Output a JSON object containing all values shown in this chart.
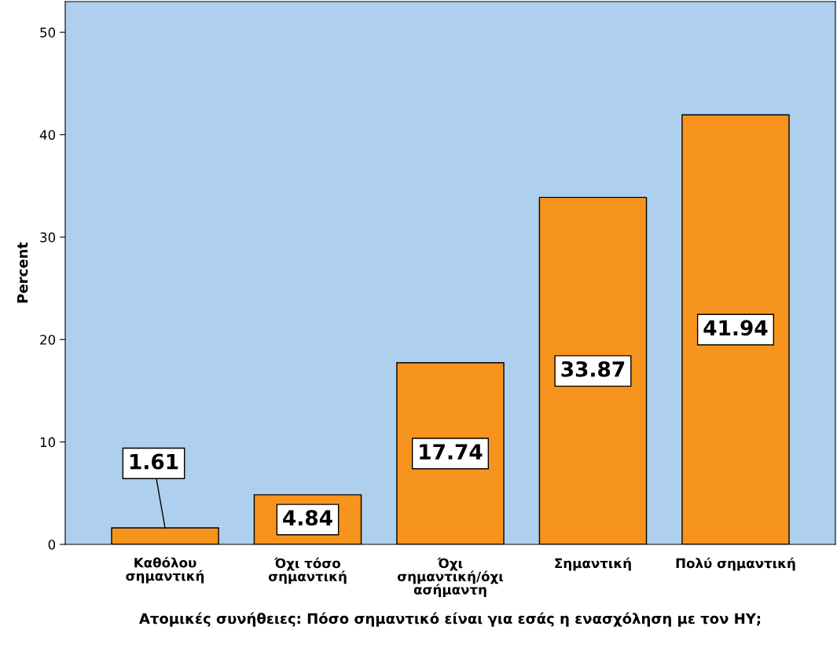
{
  "chart_data": {
    "type": "bar",
    "xlabel": "Ατομικές συνήθειες: Πόσο σημαντικό είναι για εσάς η ενασχόληση με τον ΗΥ;",
    "ylabel": "Percent",
    "categories": [
      "Καθόλου\nσημαντική",
      "Όχι τόσο\nσημαντική",
      "Όχι\nσημαντική/όχι\nασήμαντη",
      "Σημαντική",
      "Πολύ σημαντική"
    ],
    "values": [
      1.61,
      4.84,
      17.74,
      33.87,
      41.94
    ],
    "color": "#f7941d",
    "ylim": [
      0,
      53
    ],
    "yticks": [
      0,
      10,
      20,
      30,
      40,
      50
    ],
    "data_labels": true,
    "grid": false,
    "legend": false
  }
}
